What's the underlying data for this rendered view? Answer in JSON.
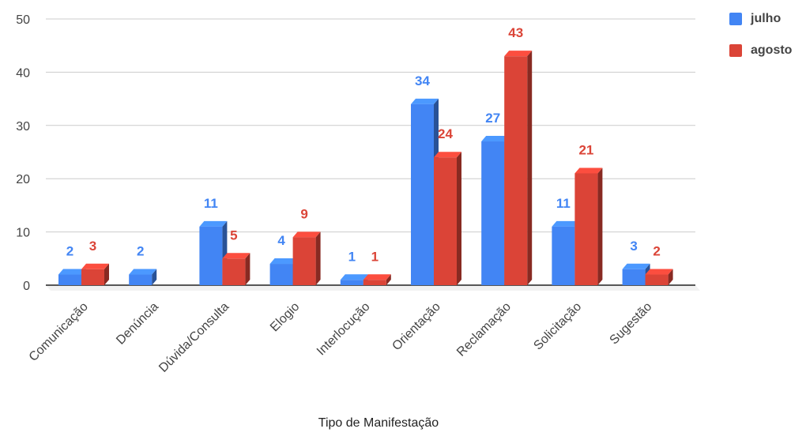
{
  "chart_data": {
    "type": "bar",
    "style": "3d",
    "xlabel": "Tipo de Manifestação",
    "ylabel": "",
    "ylim": [
      0,
      50
    ],
    "yticks": [
      0,
      10,
      20,
      30,
      40,
      50
    ],
    "grid": true,
    "legend_position": "top-right",
    "categories": [
      "Comunicação",
      "Denúncia",
      "Dúvida/Consulta",
      "Elogio",
      "Interlocução",
      "Orientação",
      "Reclamação",
      "Solicitação",
      "Sugestão"
    ],
    "series": [
      {
        "name": "julho",
        "color": "#4285f4",
        "values": [
          2,
          2,
          11,
          4,
          1,
          34,
          27,
          11,
          3
        ]
      },
      {
        "name": "agosto",
        "color": "#db4437",
        "values": [
          3,
          null,
          5,
          9,
          1,
          24,
          43,
          21,
          2
        ]
      }
    ]
  }
}
